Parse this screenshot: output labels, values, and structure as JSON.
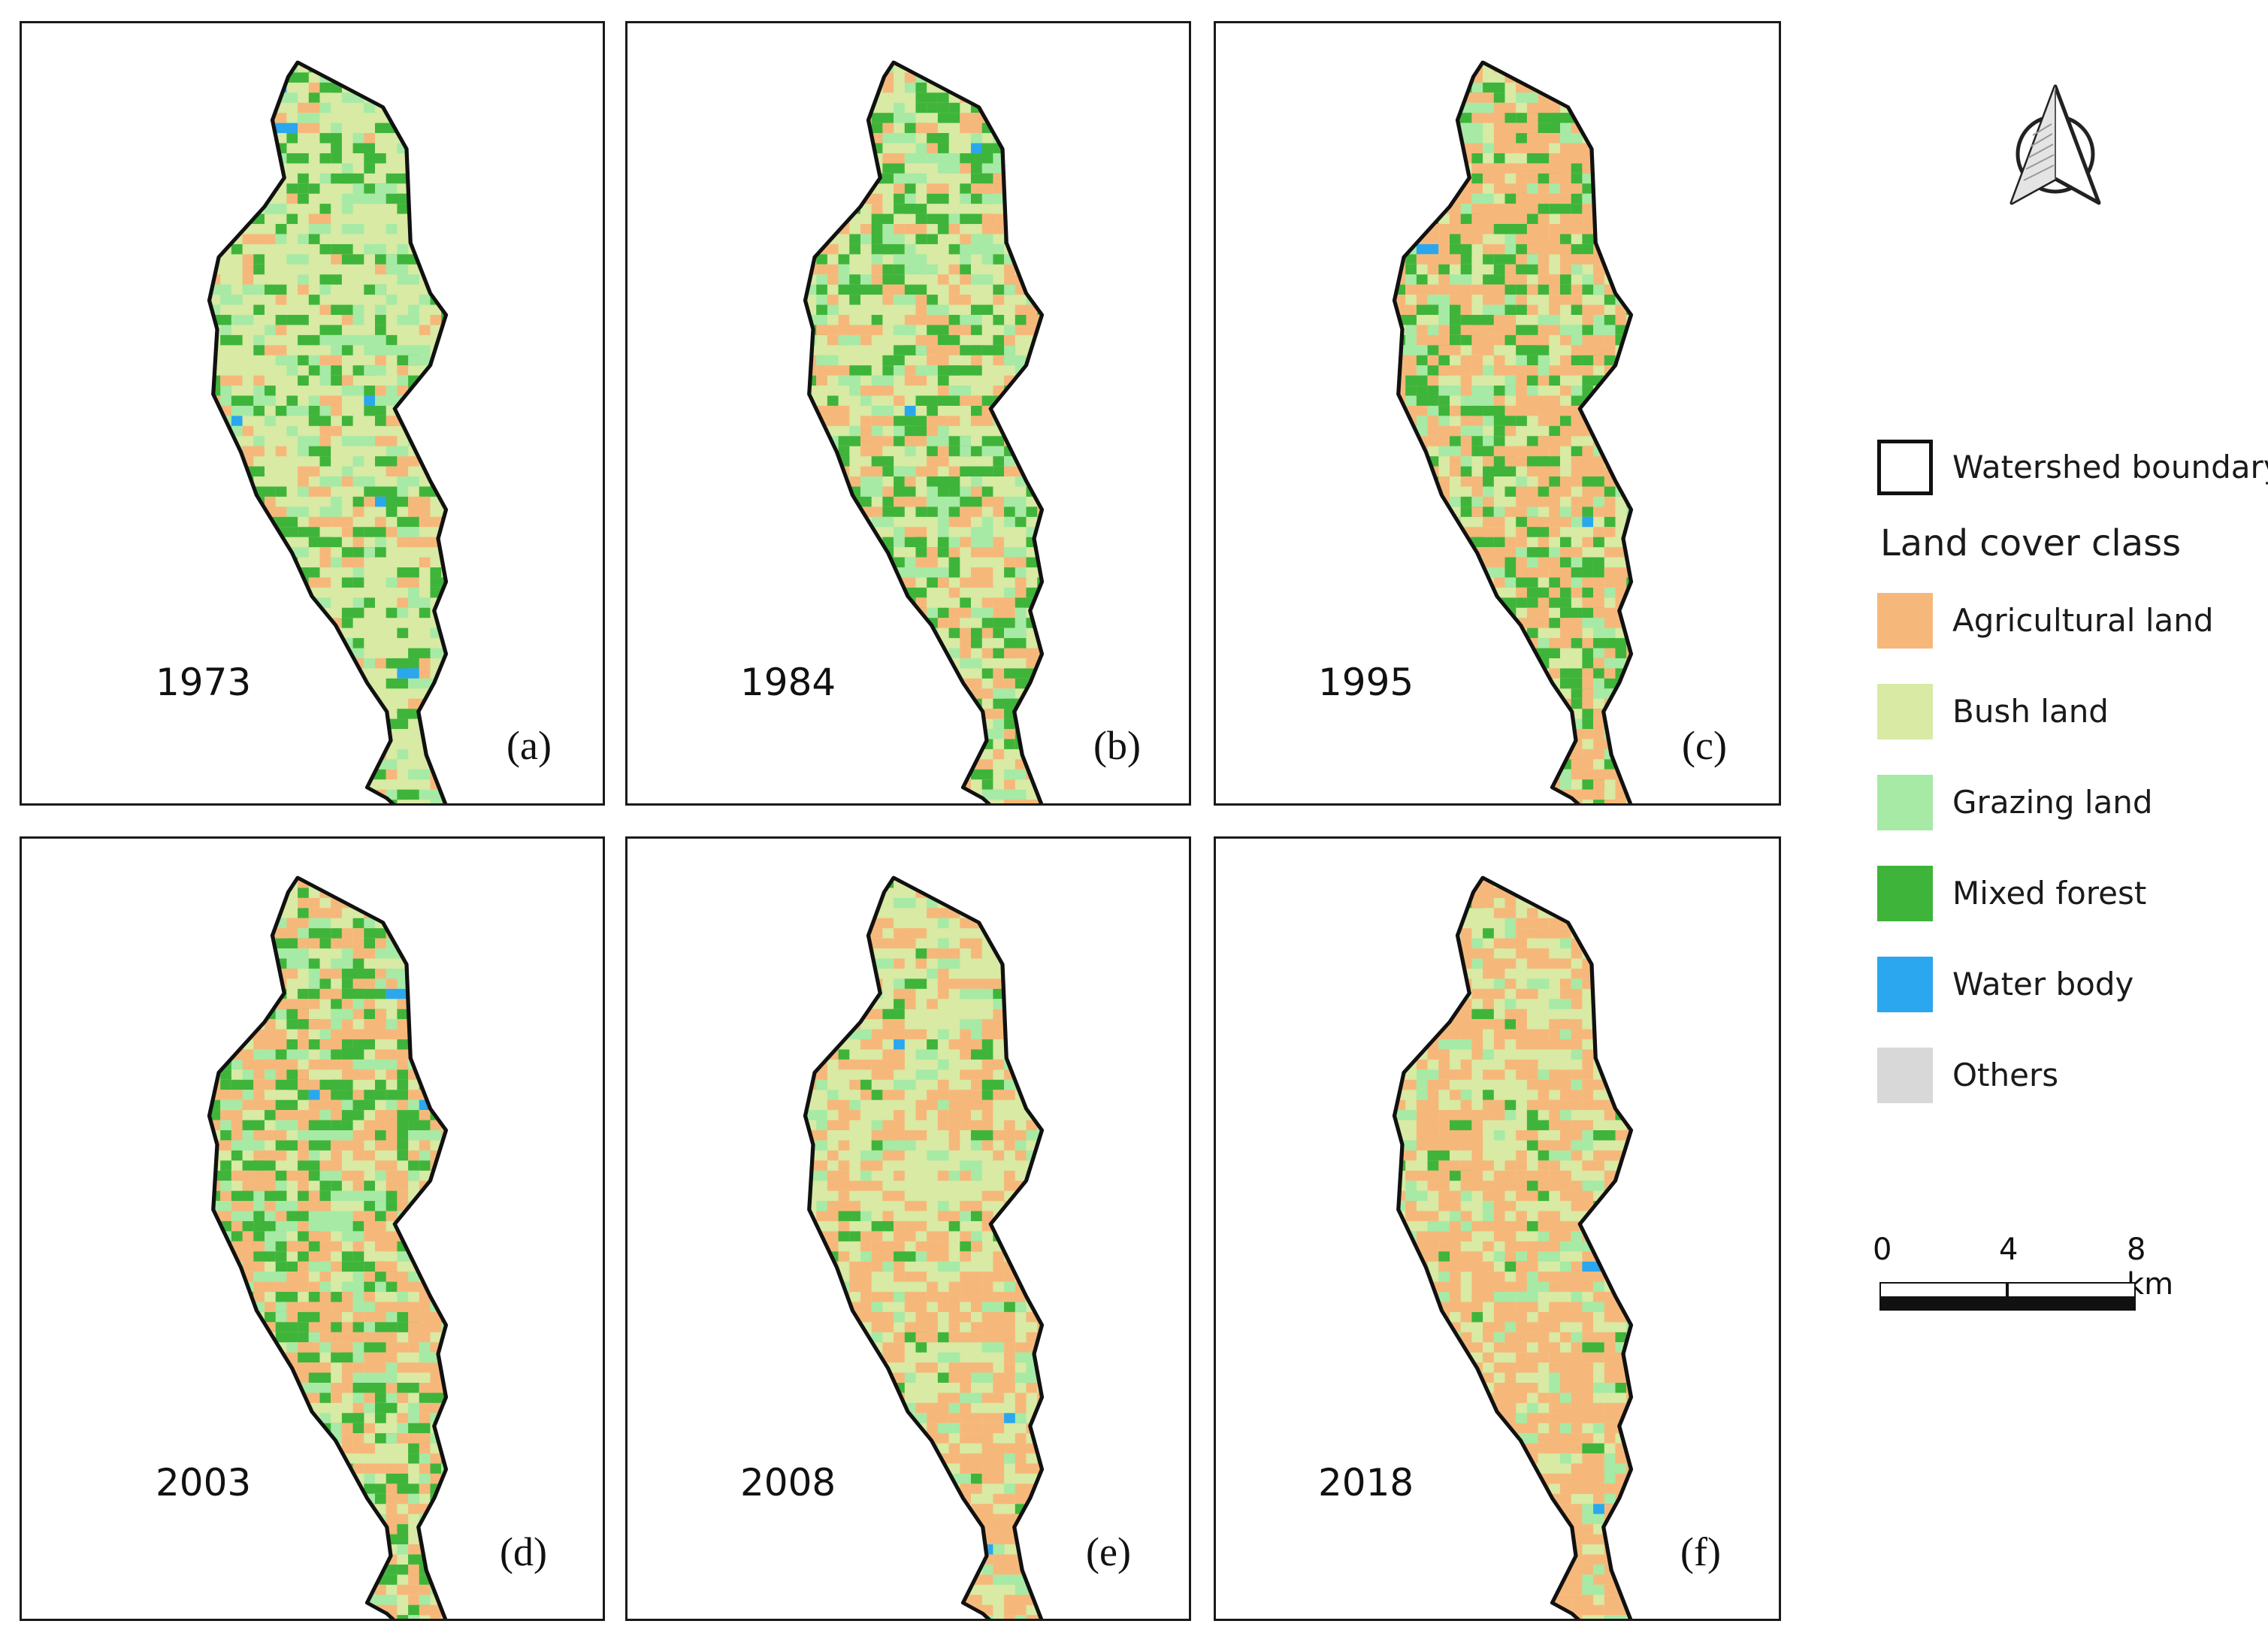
{
  "panels": [
    {
      "year": "1973",
      "letter": "(a)",
      "dominant": "#d8eaa4",
      "mix": {
        "forest": 0.16,
        "agri": 0.07,
        "graze": 0.13
      }
    },
    {
      "year": "1984",
      "letter": "(b)",
      "dominant": "#d8eaa4",
      "mix": {
        "forest": 0.2,
        "agri": 0.2,
        "graze": 0.12
      }
    },
    {
      "year": "1995",
      "letter": "(c)",
      "dominant": "#d8eaa4",
      "mix": {
        "forest": 0.22,
        "agri": 0.4,
        "graze": 0.12
      }
    },
    {
      "year": "2003",
      "letter": "(d)",
      "dominant": "#d8eaa4",
      "mix": {
        "forest": 0.2,
        "agri": 0.35,
        "graze": 0.14
      }
    },
    {
      "year": "2008",
      "letter": "(e)",
      "dominant": "#d8eaa4",
      "mix": {
        "forest": 0.03,
        "agri": 0.32,
        "graze": 0.1
      }
    },
    {
      "year": "2018",
      "letter": "(f)",
      "dominant": "#d8eaa4",
      "mix": {
        "forest": 0.03,
        "agri": 0.45,
        "graze": 0.1
      }
    }
  ],
  "legend": {
    "boundary_label": "Watershed boundary",
    "title": "Land cover class",
    "classes": [
      {
        "label": "Agricultural land",
        "color": "#f6b87a"
      },
      {
        "label": "Bush land",
        "color": "#d8eaa4"
      },
      {
        "label": "Grazing land",
        "color": "#a6eaa6"
      },
      {
        "label": "Mixed forest",
        "color": "#3fb43a"
      },
      {
        "label": "Water body",
        "color": "#2aa7ee"
      },
      {
        "label": "Others",
        "color": "#d8d8d8"
      }
    ]
  },
  "scale_bar": {
    "ticks": [
      "0",
      "4",
      "8 km"
    ]
  },
  "north_arrow": {
    "icon": "north-arrow-icon"
  }
}
